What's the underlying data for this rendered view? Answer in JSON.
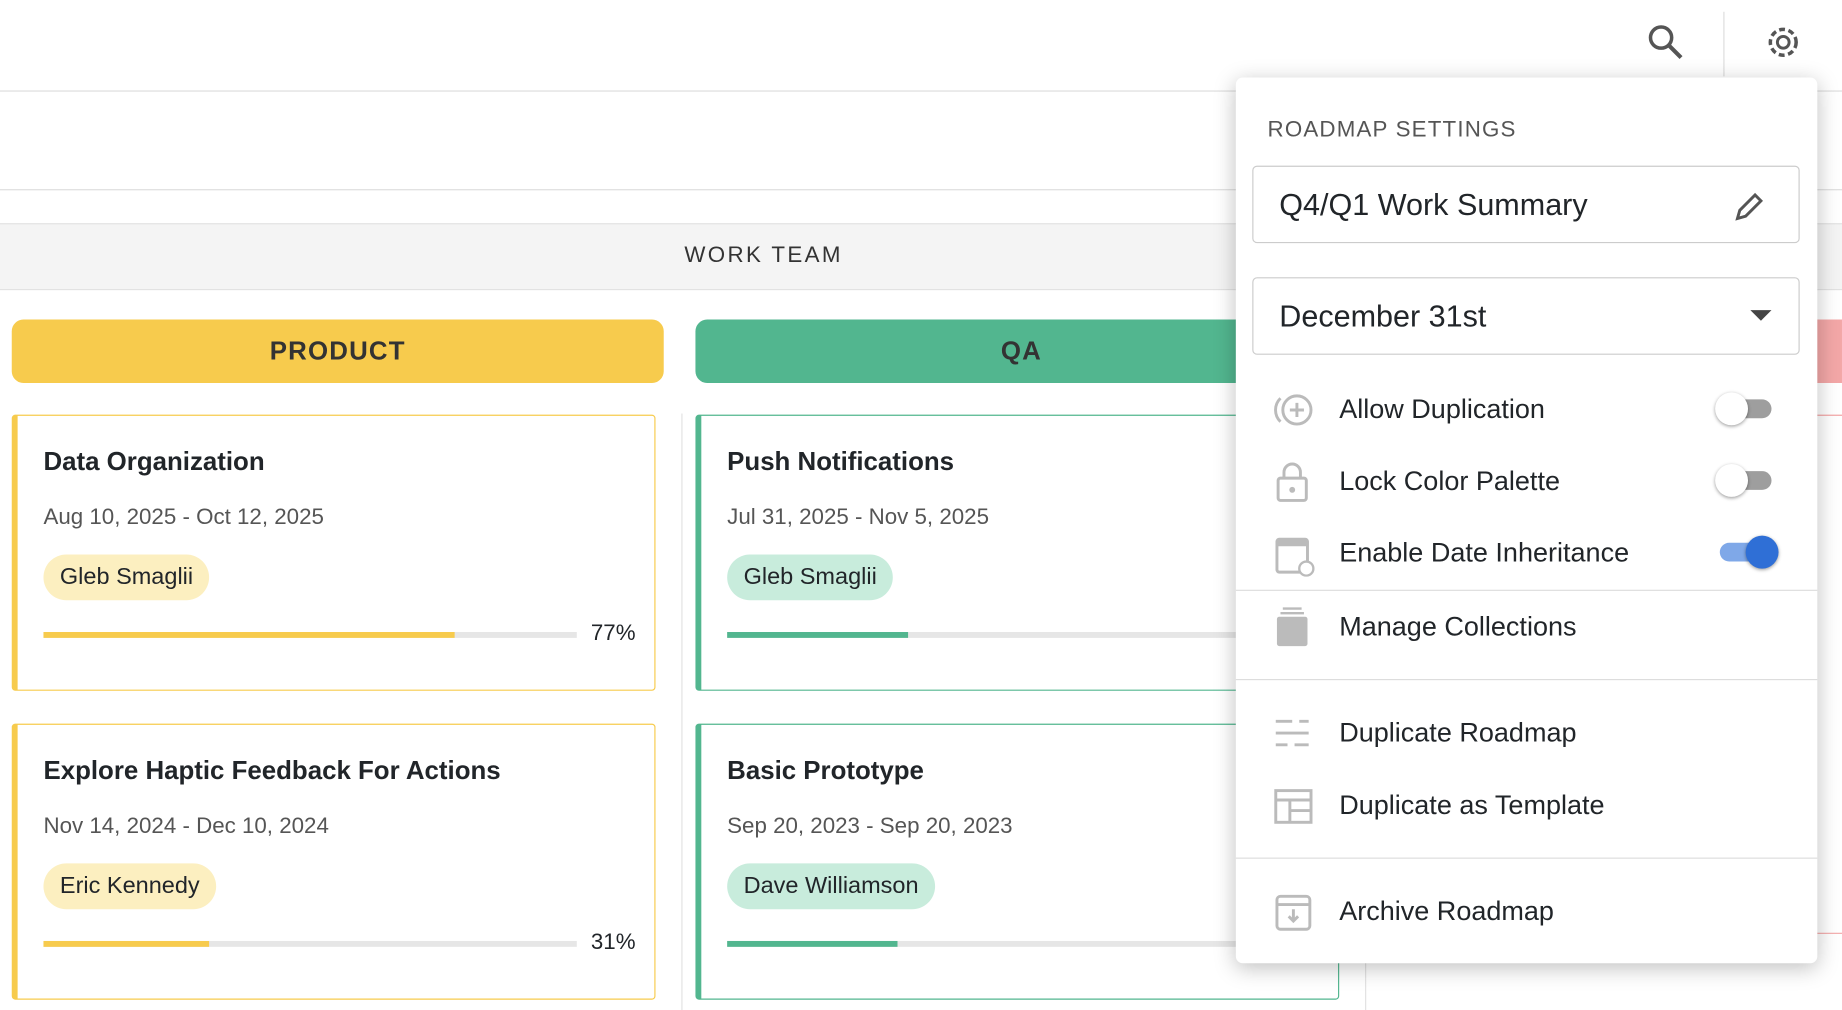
{
  "board": {
    "group_header": "WORK TEAM",
    "columns": [
      {
        "title": "PRODUCT",
        "color": "#f7cb4d",
        "chip": "#fcefc0",
        "cards": [
          {
            "title": "Data Organization",
            "dates": "Aug 10, 2025 - Oct 12, 2025",
            "assignee": "Gleb Smaglii",
            "progress": 77,
            "progress_label": "77%"
          },
          {
            "title": "Explore Haptic Feedback For Actions",
            "dates": "Nov 14, 2024 - Dec 10, 2024",
            "assignee": "Eric Kennedy",
            "progress": 31,
            "progress_label": "31%"
          }
        ]
      },
      {
        "title": "QA",
        "color": "#52b68f",
        "chip": "#c8ecdc",
        "cards": [
          {
            "title": "Push Notifications",
            "dates": "Jul 31, 2025 - Nov 5, 2025",
            "assignee": "Gleb Smaglii",
            "progress": 34
          },
          {
            "title": "Basic Prototype",
            "dates": "Sep 20, 2023 - Sep 20, 2023",
            "assignee": "Dave Williamson",
            "progress": 32
          }
        ]
      }
    ]
  },
  "menu": {
    "title": "ROADMAP SETTINGS",
    "name_field": "Q4/Q1 Work Summary",
    "date_select": "December 31st",
    "toggles": [
      {
        "label": "Allow Duplication",
        "on": false
      },
      {
        "label": "Lock Color Palette",
        "on": false
      },
      {
        "label": "Enable Date Inheritance",
        "on": true
      }
    ],
    "actions": [
      "Manage Collections",
      "Duplicate Roadmap",
      "Duplicate as Template",
      "Archive Roadmap"
    ]
  }
}
